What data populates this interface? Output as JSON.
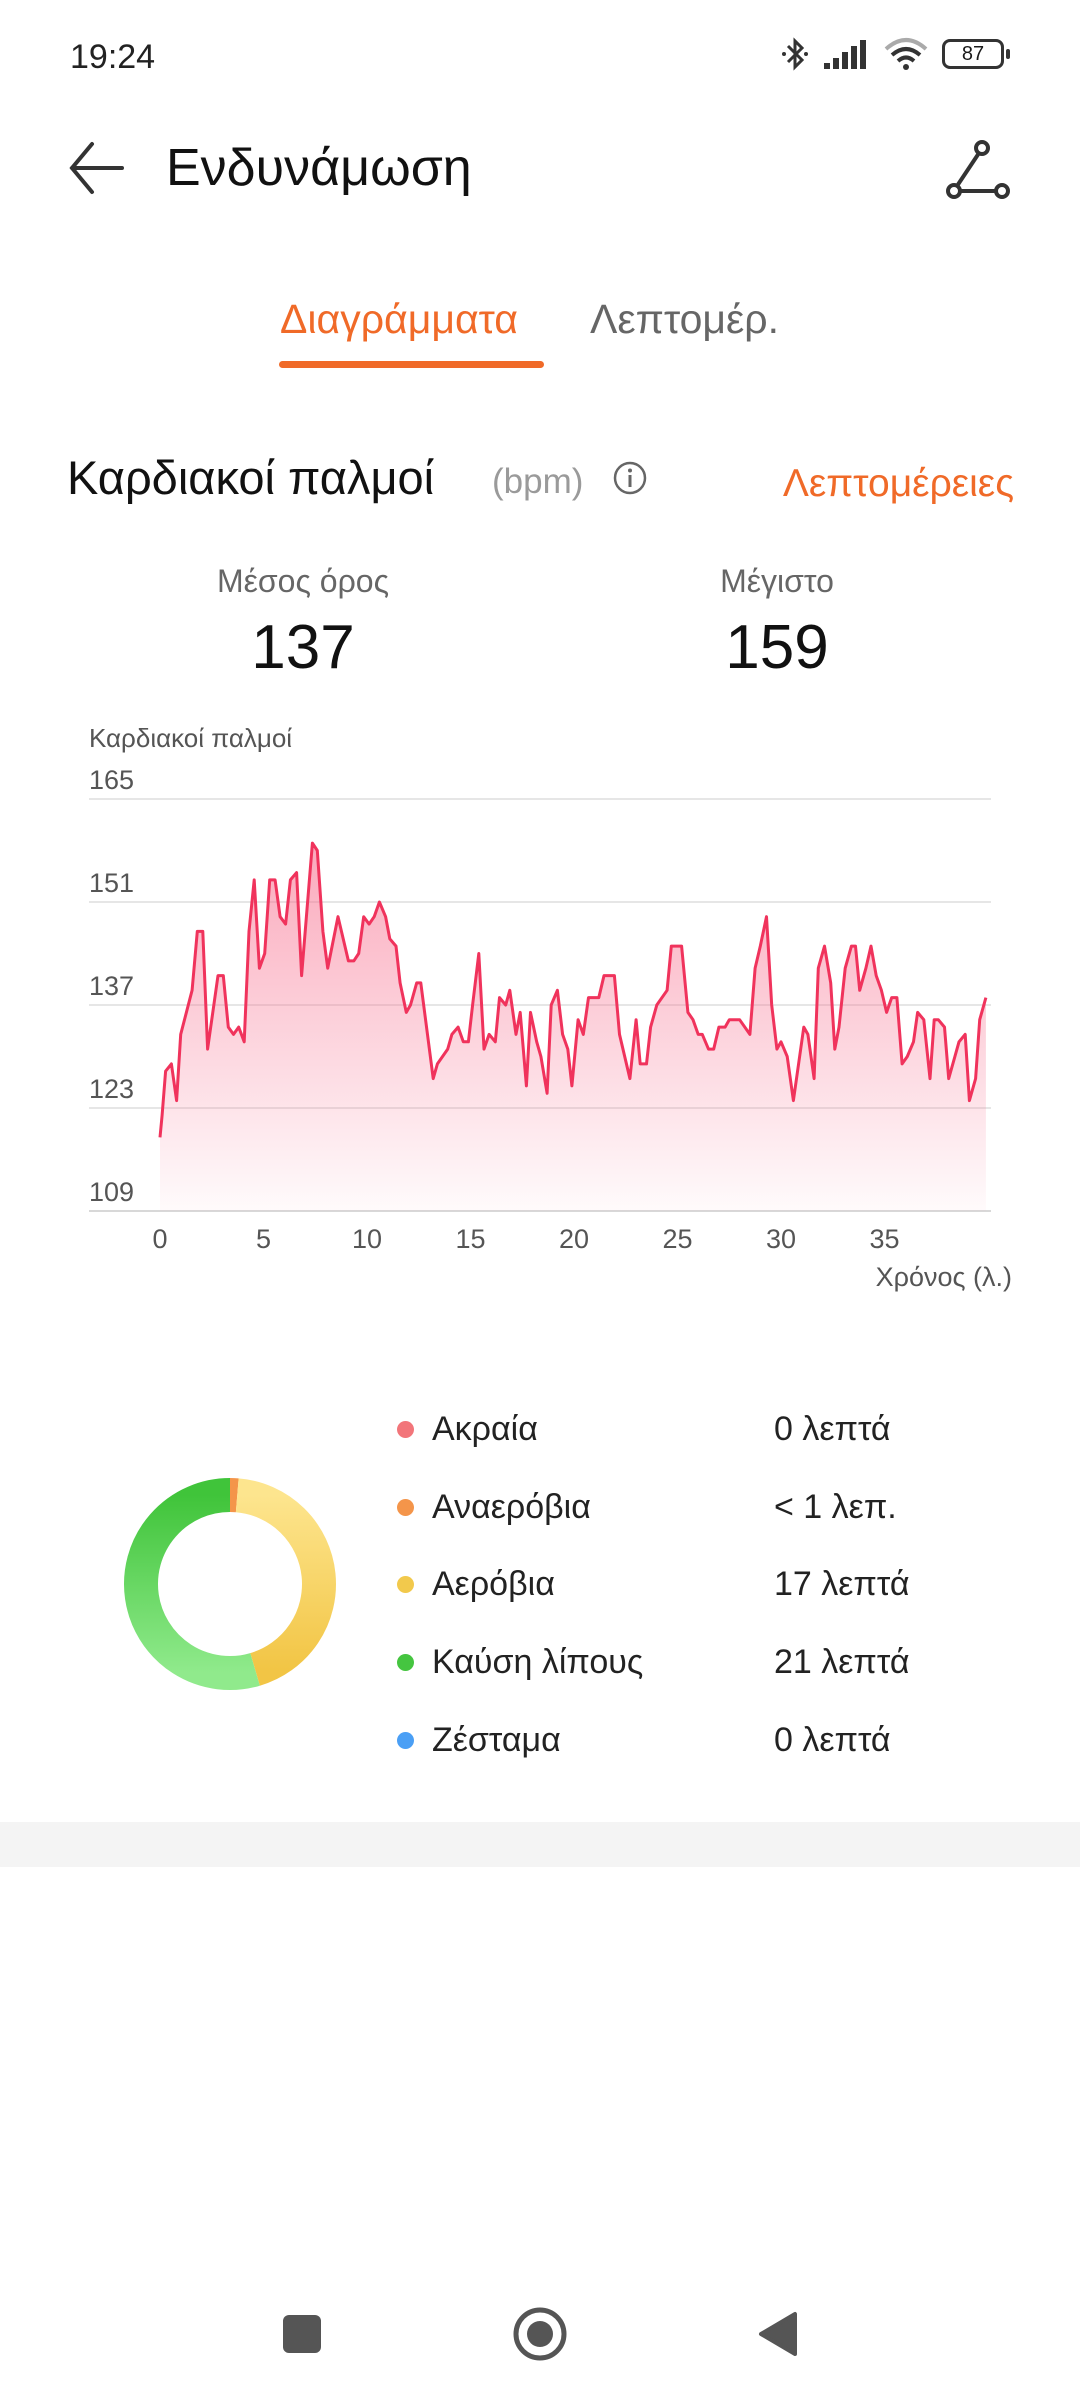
{
  "status_bar": {
    "time": "19:24",
    "battery": "87",
    "icons": [
      "bluetooth-icon",
      "signal-icon",
      "wifi-icon",
      "battery-icon"
    ]
  },
  "header": {
    "title": "Ενδυνάμωση",
    "back_icon": "arrow-left-icon",
    "share_icon": "route-share-icon"
  },
  "tabs": [
    {
      "label": "Διαγράμματα",
      "active": true
    },
    {
      "label": "Λεπτομέρ.",
      "active": false
    }
  ],
  "heart_rate": {
    "title": "Καρδιακοί παλμοί",
    "unit": "(bpm)",
    "details_link": "Λεπτομέρειες",
    "stats": [
      {
        "label": "Μέσος όρος",
        "value": "137"
      },
      {
        "label": "Μέγιστο",
        "value": "159"
      }
    ]
  },
  "colors": {
    "accent": "#f06a28",
    "line": "#f0335c",
    "extreme": "#f2757a",
    "anaerobic": "#f4954a",
    "aerobic": "#f2c94c",
    "fat_burn": "#45c540",
    "warmup": "#4a9ff5"
  },
  "chart_data": {
    "type": "area",
    "ylabel": "Καρδιακοί παλμοί",
    "xlabel": "Χρόνος (λ.)",
    "ylim": [
      109,
      165
    ],
    "yticks": [
      "165",
      "151",
      "137",
      "123",
      "109"
    ],
    "xlim": [
      0,
      40
    ],
    "xticks": [
      "0",
      "5",
      "10",
      "15",
      "20",
      "25",
      "30",
      "35"
    ],
    "grid": true,
    "points": [
      [
        0,
        119
      ],
      [
        0.1,
        122
      ],
      [
        0.27,
        128
      ],
      [
        0.55,
        129
      ],
      [
        0.8,
        124
      ],
      [
        1.0,
        133
      ],
      [
        1.55,
        139
      ],
      [
        1.8,
        147
      ],
      [
        2.07,
        147
      ],
      [
        2.3,
        131
      ],
      [
        2.8,
        141
      ],
      [
        3.06,
        141
      ],
      [
        3.3,
        134
      ],
      [
        3.55,
        133
      ],
      [
        3.8,
        134
      ],
      [
        4.07,
        132
      ],
      [
        4.3,
        147
      ],
      [
        4.55,
        154
      ],
      [
        4.8,
        142
      ],
      [
        5.06,
        144
      ],
      [
        5.3,
        154
      ],
      [
        5.56,
        154
      ],
      [
        5.8,
        149
      ],
      [
        6.07,
        148
      ],
      [
        6.3,
        154
      ],
      [
        6.6,
        155
      ],
      [
        6.84,
        141
      ],
      [
        7.36,
        159
      ],
      [
        7.6,
        158
      ],
      [
        7.87,
        147
      ],
      [
        8.1,
        142
      ],
      [
        8.6,
        149
      ],
      [
        9.1,
        143
      ],
      [
        9.36,
        143
      ],
      [
        9.6,
        144
      ],
      [
        9.84,
        149
      ],
      [
        10.1,
        148
      ],
      [
        10.35,
        149
      ],
      [
        10.6,
        151
      ],
      [
        10.9,
        149
      ],
      [
        11.1,
        146
      ],
      [
        11.4,
        145
      ],
      [
        11.6,
        140
      ],
      [
        11.9,
        136
      ],
      [
        12.1,
        137
      ],
      [
        12.4,
        140
      ],
      [
        12.6,
        140
      ],
      [
        13.2,
        127
      ],
      [
        13.4,
        129
      ],
      [
        13.9,
        131
      ],
      [
        14.1,
        133
      ],
      [
        14.4,
        134
      ],
      [
        14.65,
        132
      ],
      [
        14.9,
        132
      ],
      [
        15.1,
        137
      ],
      [
        15.4,
        144
      ],
      [
        15.65,
        131
      ],
      [
        15.9,
        133
      ],
      [
        16.2,
        132
      ],
      [
        16.4,
        138
      ],
      [
        16.7,
        137
      ],
      [
        16.9,
        139
      ],
      [
        17.2,
        133
      ],
      [
        17.4,
        136
      ],
      [
        17.7,
        126
      ],
      [
        17.9,
        136
      ],
      [
        18.2,
        132
      ],
      [
        18.4,
        130
      ],
      [
        18.7,
        125
      ],
      [
        18.9,
        137
      ],
      [
        19.2,
        139
      ],
      [
        19.45,
        133
      ],
      [
        19.7,
        131
      ],
      [
        19.9,
        126
      ],
      [
        20.2,
        135
      ],
      [
        20.45,
        133
      ],
      [
        20.7,
        138
      ],
      [
        21.2,
        138
      ],
      [
        21.45,
        141
      ],
      [
        21.95,
        141
      ],
      [
        22.2,
        133
      ],
      [
        22.7,
        127
      ],
      [
        23.0,
        135
      ],
      [
        23.2,
        129
      ],
      [
        23.5,
        129
      ],
      [
        23.7,
        134
      ],
      [
        24.0,
        137
      ],
      [
        24.5,
        139
      ],
      [
        24.7,
        145
      ],
      [
        25.2,
        145
      ],
      [
        25.5,
        136
      ],
      [
        25.75,
        135
      ],
      [
        26.0,
        133
      ],
      [
        26.2,
        133
      ],
      [
        26.5,
        131
      ],
      [
        26.75,
        131
      ],
      [
        27.0,
        134
      ],
      [
        27.3,
        134
      ],
      [
        27.5,
        135
      ],
      [
        28.0,
        135
      ],
      [
        28.5,
        133
      ],
      [
        28.75,
        142
      ],
      [
        29.0,
        145
      ],
      [
        29.3,
        149
      ],
      [
        29.55,
        137
      ],
      [
        29.8,
        131
      ],
      [
        30.0,
        132
      ],
      [
        30.3,
        130
      ],
      [
        30.6,
        124
      ],
      [
        31.1,
        134
      ],
      [
        31.3,
        133
      ],
      [
        31.6,
        127
      ],
      [
        31.8,
        142
      ],
      [
        32.1,
        145
      ],
      [
        32.4,
        140
      ],
      [
        32.6,
        131
      ],
      [
        32.8,
        134
      ],
      [
        33.1,
        142
      ],
      [
        33.4,
        145
      ],
      [
        33.6,
        145
      ],
      [
        33.8,
        139
      ],
      [
        34.1,
        142
      ],
      [
        34.35,
        145
      ],
      [
        34.6,
        141
      ],
      [
        34.85,
        139
      ],
      [
        35.1,
        136
      ],
      [
        35.35,
        138
      ],
      [
        35.6,
        138
      ],
      [
        35.85,
        129
      ],
      [
        36.1,
        130
      ],
      [
        36.4,
        132
      ],
      [
        36.6,
        136
      ],
      [
        36.9,
        135
      ],
      [
        37.2,
        127
      ],
      [
        37.4,
        135
      ],
      [
        37.6,
        135
      ],
      [
        37.9,
        134
      ],
      [
        38.1,
        127
      ],
      [
        38.4,
        130
      ],
      [
        38.6,
        132
      ],
      [
        38.9,
        133
      ],
      [
        39.1,
        124
      ],
      [
        39.4,
        127
      ],
      [
        39.6,
        135
      ],
      [
        39.9,
        138
      ]
    ]
  },
  "zones": {
    "chart_type": "donut",
    "items": [
      {
        "label": "Ακραία",
        "value": "0 λεπτά",
        "minutes": 0,
        "color": "#f2757a"
      },
      {
        "label": "Αναερόβια",
        "value": "< 1 λεπ.",
        "minutes": 0.5,
        "color": "#f4954a"
      },
      {
        "label": "Αερόβια",
        "value": "17 λεπτά",
        "minutes": 17,
        "color": "#f2c94c"
      },
      {
        "label": "Καύση λίπους",
        "value": "21 λεπτά",
        "minutes": 21,
        "color": "#45c540"
      },
      {
        "label": "Ζέσταμα",
        "value": "0 λεπτά",
        "minutes": 0,
        "color": "#4a9ff5"
      }
    ]
  }
}
